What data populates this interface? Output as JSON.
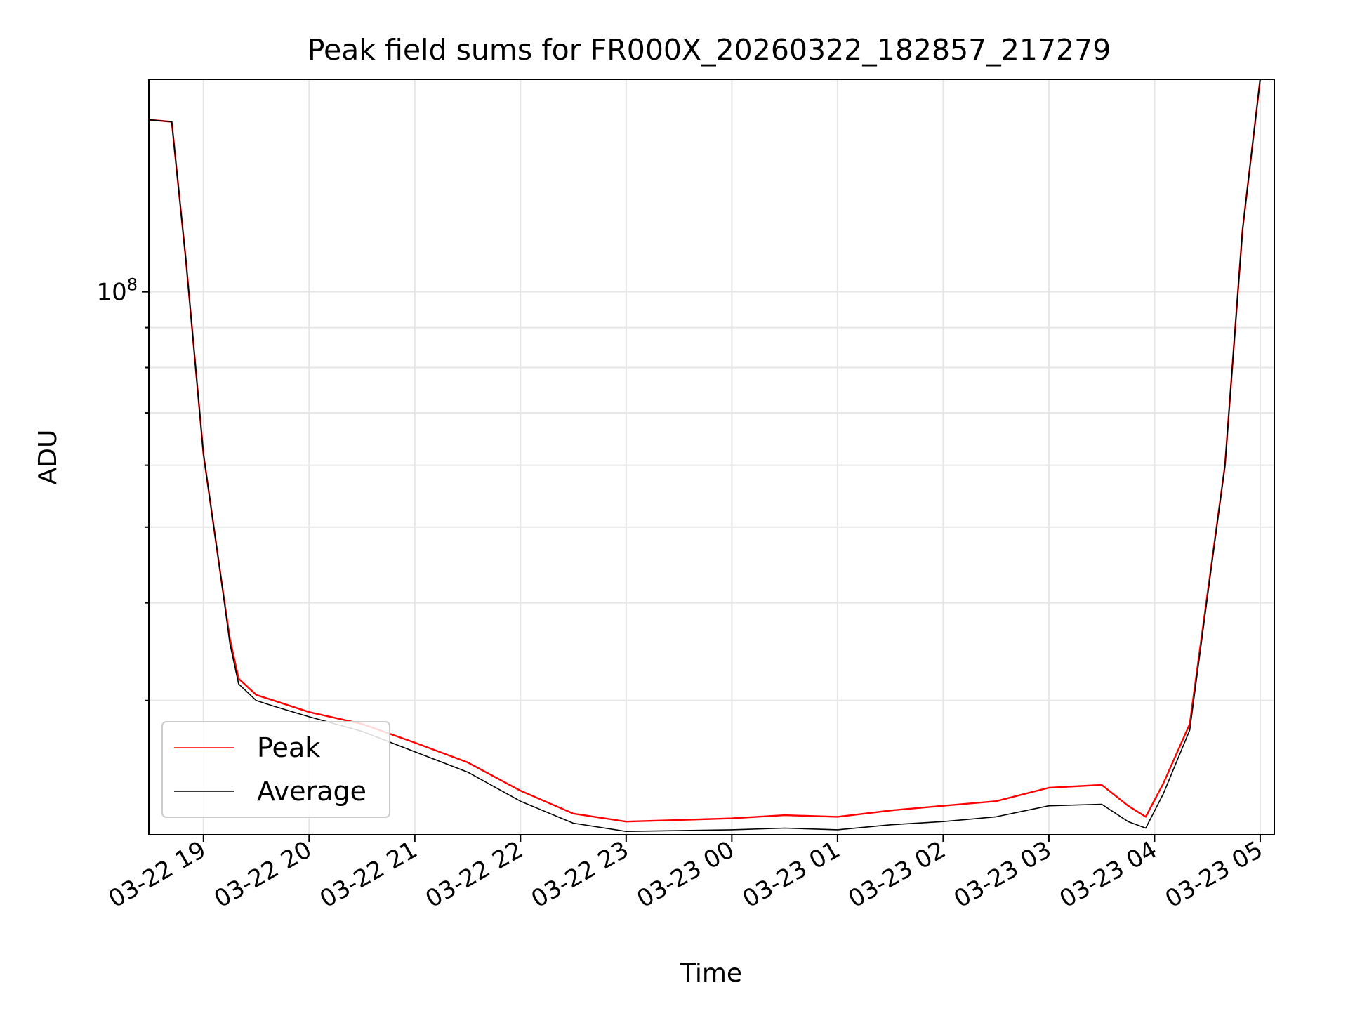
{
  "chart_data": {
    "type": "line",
    "title": "Peak field sums for FR000X_20260322_182857_217279",
    "xlabel": "Time",
    "ylabel": "ADU",
    "x_ticks": [
      "03-22 19",
      "03-22 20",
      "03-22 21",
      "03-22 22",
      "03-22 23",
      "03-23 00",
      "03-23 01",
      "03-23 02",
      "03-23 03",
      "03-23 04",
      "03-23 05"
    ],
    "y_scale": "log",
    "y_ticks": [
      {
        "base": "10",
        "exponent": "8",
        "value": 100000000
      }
    ],
    "xlim": [
      "2026-03-22 18:29",
      "2026-03-23 05:08"
    ],
    "ylim": [
      20200000,
      187000000
    ],
    "grid": true,
    "legend": "lower-left",
    "series": [
      {
        "name": "Peak",
        "color": "#ff0000",
        "x": [
          "2026-03-22 18:29",
          "2026-03-22 18:42",
          "2026-03-22 18:50",
          "2026-03-22 19:00",
          "2026-03-22 19:10",
          "2026-03-22 19:15",
          "2026-03-22 19:20",
          "2026-03-22 19:30",
          "2026-03-22 19:40",
          "2026-03-22 20:00",
          "2026-03-22 20:30",
          "2026-03-22 21:00",
          "2026-03-22 21:30",
          "2026-03-22 22:00",
          "2026-03-22 22:30",
          "2026-03-22 23:00",
          "2026-03-22 23:30",
          "2026-03-23 00:00",
          "2026-03-23 00:30",
          "2026-03-23 01:00",
          "2026-03-23 01:30",
          "2026-03-23 02:00",
          "2026-03-23 02:30",
          "2026-03-23 03:00",
          "2026-03-23 03:30",
          "2026-03-23 03:45",
          "2026-03-23 03:55",
          "2026-03-23 04:05",
          "2026-03-23 04:20",
          "2026-03-23 04:40",
          "2026-03-23 04:50",
          "2026-03-23 05:00"
        ],
        "y": [
          166000000,
          165000000,
          110000000,
          62000000,
          43000000,
          36000000,
          32000000,
          30500000,
          30000000,
          29000000,
          28000000,
          26500000,
          25000000,
          23000000,
          21500000,
          21000000,
          21100000,
          21200000,
          21400000,
          21300000,
          21700000,
          22000000,
          22300000,
          23200000,
          23400000,
          22000000,
          21300000,
          23500000,
          28000000,
          60000000,
          120000000,
          187000000
        ]
      },
      {
        "name": "Average",
        "color": "#000000",
        "x": [
          "2026-03-22 18:29",
          "2026-03-22 18:42",
          "2026-03-22 18:50",
          "2026-03-22 19:00",
          "2026-03-22 19:10",
          "2026-03-22 19:15",
          "2026-03-22 19:20",
          "2026-03-22 19:30",
          "2026-03-22 19:40",
          "2026-03-22 20:00",
          "2026-03-22 20:30",
          "2026-03-22 21:00",
          "2026-03-22 21:30",
          "2026-03-22 22:00",
          "2026-03-22 22:30",
          "2026-03-22 23:00",
          "2026-03-22 23:30",
          "2026-03-23 00:00",
          "2026-03-23 00:30",
          "2026-03-23 01:00",
          "2026-03-23 01:30",
          "2026-03-23 02:00",
          "2026-03-23 02:30",
          "2026-03-23 03:00",
          "2026-03-23 03:30",
          "2026-03-23 03:45",
          "2026-03-23 03:55",
          "2026-03-23 04:05",
          "2026-03-23 04:20",
          "2026-03-23 04:40",
          "2026-03-23 04:50",
          "2026-03-23 05:00"
        ],
        "y": [
          166000000,
          165000000,
          110000000,
          62000000,
          43000000,
          35500000,
          31500000,
          30000000,
          29500000,
          28600000,
          27400000,
          25800000,
          24300000,
          22300000,
          20900000,
          20400000,
          20450000,
          20500000,
          20600000,
          20500000,
          20800000,
          21000000,
          21300000,
          22000000,
          22100000,
          21000000,
          20600000,
          22800000,
          27500000,
          60000000,
          120000000,
          187000000
        ]
      }
    ]
  }
}
